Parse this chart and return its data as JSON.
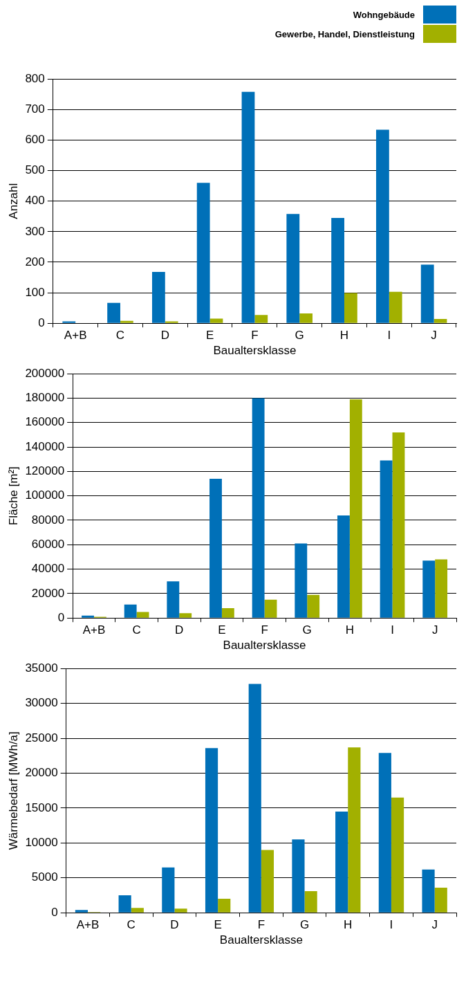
{
  "chart_data": [
    {
      "type": "bar",
      "xlabel": "Baualtersklasse",
      "ylabel": "Anzahl",
      "categories": [
        "A+B",
        "C",
        "D",
        "E",
        "F",
        "G",
        "H",
        "I",
        "J"
      ],
      "series": [
        {
          "name": "Wohngebäude",
          "color": "#0070b8",
          "values": [
            6,
            67,
            168,
            460,
            758,
            358,
            345,
            634,
            192
          ]
        },
        {
          "name": "Gewerbe, Handel, Dienstleistung",
          "color": "#a2b000",
          "values": [
            null,
            8,
            6,
            15,
            27,
            32,
            99,
            103,
            14
          ]
        }
      ],
      "ylim": [
        0,
        800
      ],
      "yticks": [
        0,
        100,
        200,
        300,
        400,
        500,
        600,
        700,
        800
      ],
      "grid": "y",
      "legend": "top right"
    },
    {
      "type": "bar",
      "xlabel": "Baualtersklasse",
      "ylabel": "Fläche [m²]",
      "categories": [
        "A+B",
        "C",
        "D",
        "E",
        "F",
        "G",
        "H",
        "I",
        "J"
      ],
      "series": [
        {
          "color": "#0070b8",
          "values": [
            2000,
            11000,
            30000,
            114000,
            180000,
            61000,
            84000,
            129000,
            47000
          ]
        },
        {
          "color": "#a2b000",
          "values": [
            1000,
            5000,
            4000,
            8000,
            15000,
            19000,
            179000,
            152000,
            48000
          ]
        }
      ],
      "ylim": [
        0,
        200000
      ],
      "yticks": [
        0,
        20000,
        40000,
        60000,
        80000,
        100000,
        120000,
        140000,
        160000,
        180000,
        200000
      ],
      "grid": "y"
    },
    {
      "type": "bar",
      "xlabel": "Baualtersklasse",
      "ylabel": "Wärmebedarf [MWh/a]",
      "categories": [
        "A+B",
        "C",
        "D",
        "E",
        "F",
        "G",
        "H",
        "I",
        "J"
      ],
      "series": [
        {
          "color": "#0070b8",
          "values": [
            400,
            2500,
            6500,
            23600,
            32800,
            10500,
            14500,
            22900,
            6200
          ]
        },
        {
          "color": "#a2b000",
          "values": [
            100,
            700,
            600,
            2000,
            9000,
            3100,
            23700,
            16500,
            3600
          ]
        }
      ],
      "ylim": [
        0,
        35000
      ],
      "yticks": [
        0,
        5000,
        10000,
        15000,
        20000,
        25000,
        30000,
        35000
      ],
      "grid": "y"
    }
  ]
}
